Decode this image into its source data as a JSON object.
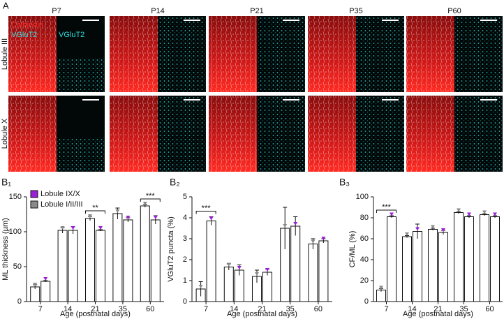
{
  "panel_a": {
    "label": "A",
    "columns": [
      "P7",
      "P14",
      "P21",
      "P35",
      "P60"
    ],
    "rows": [
      "Lobule III",
      "Lobule X"
    ],
    "merged_labels": [
      "Calbindin",
      "VGluT2"
    ],
    "single_label": "VGluT2"
  },
  "chart_data": [
    {
      "type": "bar",
      "panel_label": "B₁",
      "y_label": "ML thickness (µm)",
      "x_label": "Age (postnatal days)",
      "categories": [
        "7",
        "14",
        "21",
        "35",
        "60"
      ],
      "series": [
        {
          "name": "Lobule I/II/III",
          "color": "#8a8a8a",
          "values": [
            21,
            102,
            119,
            126,
            137
          ],
          "errors": [
            3,
            4,
            3,
            8,
            2
          ]
        },
        {
          "name": "Lobule IX/X",
          "color": "#9b1fd6",
          "values": [
            29,
            102,
            102,
            117,
            117
          ],
          "errors": [
            1,
            5,
            1,
            3,
            6
          ]
        }
      ],
      "ylim": [
        0,
        150
      ],
      "yticks": [
        0,
        50,
        100,
        150
      ],
      "legend": "upper left",
      "annotations": [
        {
          "text": "**",
          "category": "21"
        },
        {
          "text": "***",
          "category": "60"
        }
      ]
    },
    {
      "type": "bar",
      "panel_label": "B₂",
      "y_label": "VGluT2 puncta (%)",
      "x_label": "Age (postnatal days)",
      "categories": [
        "7",
        "14",
        "21",
        "35",
        "60"
      ],
      "series": [
        {
          "color": "#8a8a8a",
          "values": [
            0.6,
            1.65,
            1.2,
            3.5,
            2.75
          ],
          "errors": [
            0.35,
            0.15,
            0.3,
            1.0,
            0.25
          ]
        },
        {
          "color": "#9b1fd6",
          "values": [
            3.85,
            1.5,
            1.4,
            3.6,
            2.9
          ],
          "errors": [
            0.2,
            0.25,
            0.15,
            0.45,
            0.1
          ]
        }
      ],
      "ylim": [
        0,
        5
      ],
      "yticks": [
        0,
        1,
        2,
        3,
        4,
        5
      ],
      "annotations": [
        {
          "text": "***",
          "category": "7"
        }
      ]
    },
    {
      "type": "bar",
      "panel_label": "B₃",
      "y_label": "CF/ML (%)",
      "x_label": "Age (postnatal days)",
      "categories": [
        "7",
        "14",
        "21",
        "35",
        "60"
      ],
      "series": [
        {
          "color": "#8a8a8a",
          "values": [
            11,
            62,
            69,
            85,
            83
          ],
          "errors": [
            1.5,
            1,
            1,
            1,
            1
          ]
        },
        {
          "color": "#9b1fd6",
          "values": [
            81,
            67,
            66,
            81,
            81
          ],
          "errors": [
            1,
            7,
            2,
            1,
            1
          ]
        }
      ],
      "ylim": [
        0,
        100
      ],
      "yticks": [
        0,
        20,
        40,
        60,
        80,
        100
      ],
      "annotations": [
        {
          "text": "***",
          "category": "7"
        }
      ]
    }
  ]
}
